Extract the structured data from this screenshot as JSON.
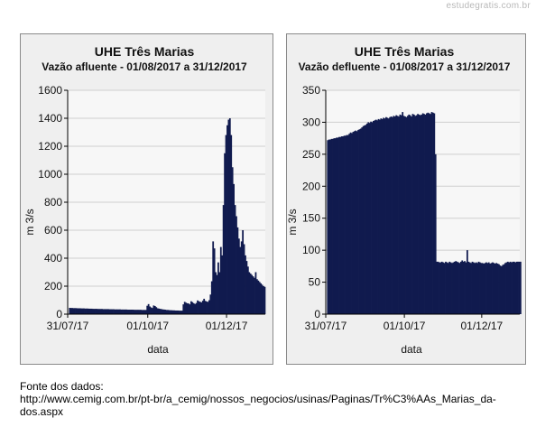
{
  "watermark": "estudegratis.com.br",
  "source": {
    "label": "Fonte dos dados:",
    "url_line1": "http://www.cemig.com.br/pt-br/a_cemig/nossos_negocios/usinas/Paginas/Tr%C3%AAs_Marias_da-",
    "url_line2": "dos.aspx"
  },
  "colors": {
    "bar": "#101a4e",
    "panel_bg": "#efefef",
    "plot_bg": "#f7f7f7",
    "grid": "#cfcfcf"
  },
  "chart_data": [
    {
      "type": "area",
      "title": "UHE Três Marias",
      "subtitle": "Vazão afluente - 01/08/2017 a 31/12/2017",
      "xlabel": "data",
      "ylabel": "m 3/s",
      "ylim": [
        0,
        1600
      ],
      "yticks": [
        0,
        200,
        400,
        600,
        800,
        1000,
        1200,
        1400,
        1600
      ],
      "xlim": [
        "2017-07-31",
        "2017-12-31"
      ],
      "xticks": [
        "31/07/17",
        "01/10/17",
        "01/12/17"
      ],
      "xtick_dates": [
        "2017-07-31",
        "2017-10-01",
        "2017-12-01"
      ],
      "grid": true,
      "legend": "none",
      "series": [
        {
          "start_date": "2017-08-01",
          "values": [
            45,
            44,
            44,
            43,
            43,
            43,
            42,
            42,
            42,
            41,
            41,
            41,
            40,
            40,
            40,
            39,
            39,
            39,
            38,
            38,
            38,
            38,
            37,
            37,
            37,
            37,
            36,
            36,
            36,
            36,
            36,
            35,
            35,
            35,
            35,
            34,
            34,
            34,
            34,
            34,
            33,
            33,
            33,
            33,
            33,
            32,
            32,
            32,
            32,
            32,
            31,
            31,
            31,
            31,
            31,
            31,
            30,
            30,
            30,
            30,
            60,
            72,
            55,
            48,
            44,
            62,
            58,
            50,
            42,
            40,
            38,
            36,
            34,
            33,
            32,
            30,
            30,
            29,
            28,
            28,
            27,
            27,
            26,
            26,
            26,
            25,
            25,
            25,
            70,
            88,
            82,
            78,
            76,
            70,
            92,
            86,
            78,
            72,
            80,
            98,
            92,
            88,
            84,
            96,
            110,
            95,
            90,
            88,
            100,
            140,
            235,
            520,
            470,
            300,
            280,
            370,
            300,
            480,
            420,
            780,
            1150,
            1280,
            1350,
            1390,
            1400,
            1280,
            1050,
            930,
            780,
            700,
            620,
            540,
            480,
            520,
            600,
            500,
            420,
            380,
            340,
            300,
            290,
            280,
            270,
            260,
            300,
            250,
            240,
            230,
            220,
            210,
            200,
            195
          ]
        }
      ]
    },
    {
      "type": "area",
      "title": "UHE Três Marias",
      "subtitle": "Vazão defluente - 01/08/2017 a 31/12/2017",
      "xlabel": "data",
      "ylabel": "m 3/s",
      "ylim": [
        0,
        350
      ],
      "yticks": [
        0,
        50,
        100,
        150,
        200,
        250,
        300,
        350
      ],
      "xlim": [
        "2017-07-31",
        "2017-12-31"
      ],
      "xticks": [
        "31/07/17",
        "01/10/17",
        "01/12/17"
      ],
      "xtick_dates": [
        "2017-07-31",
        "2017-10-01",
        "2017-12-01"
      ],
      "grid": true,
      "legend": "none",
      "series": [
        {
          "start_date": "2017-08-01",
          "values": [
            272,
            273,
            273,
            274,
            274,
            275,
            275,
            276,
            276,
            277,
            277,
            278,
            278,
            279,
            279,
            280,
            280,
            282,
            284,
            283,
            285,
            286,
            287,
            286,
            288,
            289,
            290,
            292,
            294,
            295,
            296,
            298,
            300,
            299,
            301,
            300,
            302,
            303,
            304,
            303,
            305,
            304,
            306,
            305,
            307,
            306,
            308,
            307,
            306,
            308,
            309,
            308,
            310,
            309,
            311,
            310,
            309,
            312,
            311,
            316,
            310,
            309,
            308,
            310,
            312,
            311,
            309,
            313,
            312,
            310,
            311,
            313,
            312,
            311,
            312,
            314,
            313,
            312,
            314,
            315,
            314,
            313,
            316,
            315,
            314,
            250,
            82,
            82,
            81,
            81,
            82,
            81,
            80,
            82,
            81,
            80,
            82,
            81,
            80,
            81,
            82,
            83,
            82,
            81,
            80,
            82,
            84,
            82,
            83,
            81,
            100,
            82,
            81,
            80,
            82,
            81,
            80,
            81,
            80,
            82,
            81,
            80,
            80,
            79,
            80,
            81,
            80,
            81,
            79,
            80,
            81,
            80,
            79,
            80,
            79,
            78,
            76,
            75,
            77,
            78,
            80,
            81,
            82,
            81,
            82,
            81,
            82,
            82,
            81,
            82,
            82,
            82,
            82
          ]
        }
      ]
    }
  ]
}
